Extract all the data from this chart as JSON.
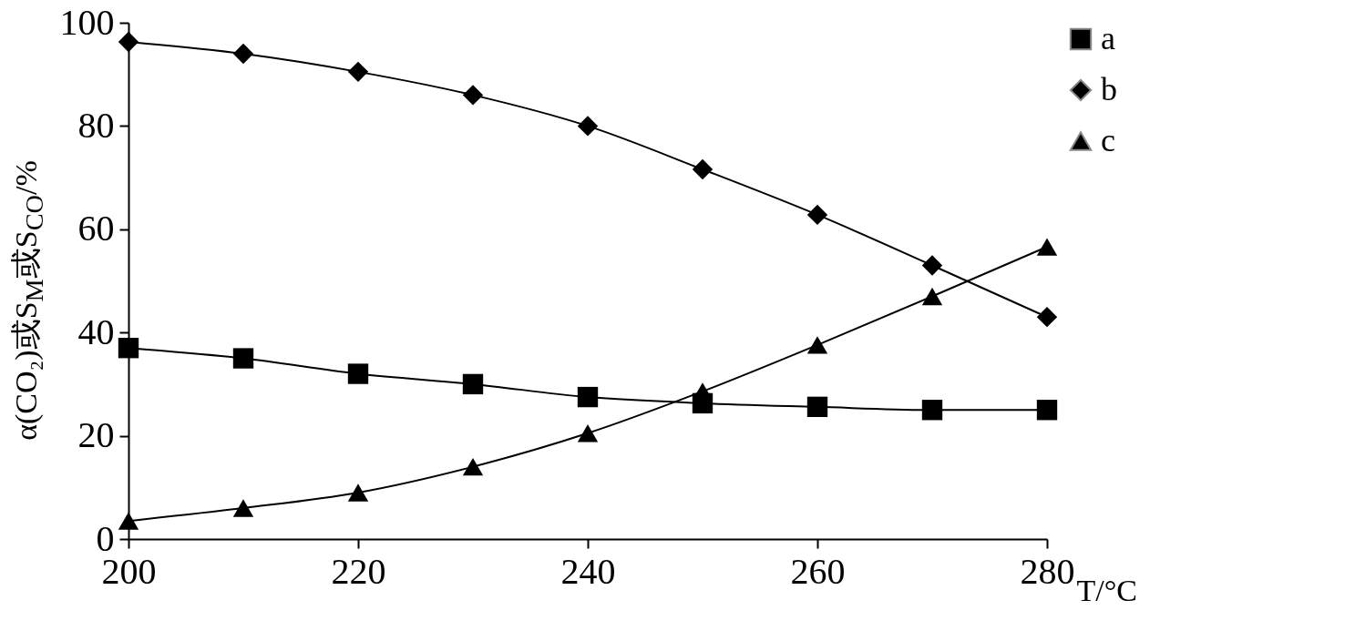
{
  "chart_data": {
    "type": "line",
    "xlabel": "T/°C",
    "ylabel": "α(CO₂)或S$_{M}$或S$_{CO}$/%",
    "x": [
      200,
      210,
      220,
      230,
      240,
      250,
      260,
      270,
      280
    ],
    "xlim": [
      200,
      280
    ],
    "xticks": [
      200,
      220,
      240,
      260,
      280
    ],
    "ylim": [
      0,
      100
    ],
    "yticks": [
      0,
      20,
      40,
      60,
      80,
      100
    ],
    "grid": false,
    "legend": "right",
    "line_style": "solid",
    "series": [
      {
        "name": "a",
        "color": "#000000",
        "marker": "square",
        "values": [
          37,
          35,
          32,
          30,
          27.5,
          26.3,
          25.6,
          25,
          25
        ]
      },
      {
        "name": "b",
        "color": "#000000",
        "marker": "diamond",
        "values": [
          96.3,
          94,
          90.5,
          86,
          80,
          71.6,
          62.8,
          53,
          43
        ]
      },
      {
        "name": "c",
        "color": "#000000",
        "marker": "triangle",
        "values": [
          3.5,
          6,
          9,
          14,
          20.5,
          28.6,
          37.6,
          47,
          56.6
        ]
      }
    ]
  }
}
